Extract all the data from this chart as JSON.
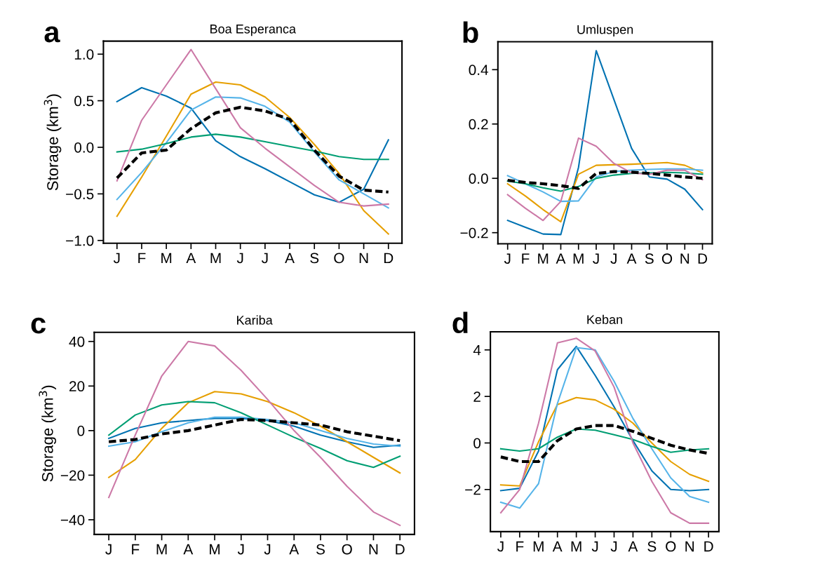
{
  "chart_data": [
    {
      "type": "line",
      "title": "Boa Esperanca",
      "ylabel": "Storage (km$^{3}$)",
      "annotations": [
        "a"
      ],
      "grid": false,
      "legend": false,
      "categories": [
        "J",
        "F",
        "M",
        "A",
        "M",
        "J",
        "J",
        "A",
        "S",
        "O",
        "N",
        "D"
      ],
      "ylim": [
        -1.03,
        1.14
      ],
      "yticks": [
        {
          "value": -1.0,
          "label": "−1.0"
        },
        {
          "value": -0.5,
          "label": "−0.5"
        },
        {
          "value": 0.0,
          "label": "0.0"
        },
        {
          "value": 0.5,
          "label": "0.5"
        },
        {
          "value": 1.0,
          "label": "1.0"
        }
      ],
      "series": [
        {
          "color": "#0072b2",
          "values": [
            0.49,
            0.64,
            0.55,
            0.42,
            0.07,
            -0.1,
            -0.23,
            -0.37,
            -0.51,
            -0.59,
            -0.45,
            0.08
          ]
        },
        {
          "color": "#e69f00",
          "values": [
            -0.74,
            -0.32,
            0.12,
            0.57,
            0.7,
            0.67,
            0.54,
            0.32,
            0.03,
            -0.28,
            -0.68,
            -0.93
          ]
        },
        {
          "color": "#56b4e9",
          "values": [
            -0.56,
            -0.27,
            0.05,
            0.4,
            0.54,
            0.53,
            0.44,
            0.27,
            -0.05,
            -0.35,
            -0.5,
            -0.65
          ]
        },
        {
          "color": "#009e73",
          "values": [
            -0.05,
            -0.02,
            0.04,
            0.11,
            0.14,
            0.11,
            0.06,
            0.01,
            -0.04,
            -0.1,
            -0.13,
            -0.13
          ]
        },
        {
          "color": "#cc79a7",
          "values": [
            -0.36,
            0.29,
            0.67,
            1.05,
            0.63,
            0.21,
            -0.01,
            -0.21,
            -0.41,
            -0.59,
            -0.63,
            -0.61
          ]
        },
        {
          "color": "#000000",
          "line_style": "dashed",
          "values": [
            -0.33,
            -0.06,
            -0.03,
            0.2,
            0.37,
            0.43,
            0.39,
            0.3,
            -0.03,
            -0.31,
            -0.46,
            -0.48
          ]
        }
      ]
    },
    {
      "type": "line",
      "title": "Umluspen",
      "annotations": [
        "b"
      ],
      "grid": false,
      "legend": false,
      "categories": [
        "J",
        "F",
        "M",
        "A",
        "M",
        "J",
        "J",
        "A",
        "S",
        "O",
        "N",
        "D"
      ],
      "ylim": [
        -0.241,
        0.503
      ],
      "yticks": [
        {
          "value": -0.2,
          "label": "−0.2"
        },
        {
          "value": 0.0,
          "label": "0.0"
        },
        {
          "value": 0.2,
          "label": "0.2"
        },
        {
          "value": 0.4,
          "label": "0.4"
        }
      ],
      "series": [
        {
          "color": "#0072b2",
          "values": [
            -0.155,
            -0.18,
            -0.205,
            -0.207,
            0.04,
            0.47,
            0.29,
            0.11,
            0.005,
            -0.003,
            -0.04,
            -0.115
          ]
        },
        {
          "color": "#e69f00",
          "values": [
            -0.02,
            -0.065,
            -0.115,
            -0.16,
            0.015,
            0.048,
            0.05,
            0.052,
            0.055,
            0.058,
            0.048,
            0.02
          ]
        },
        {
          "color": "#56b4e9",
          "values": [
            0.01,
            -0.02,
            -0.05,
            -0.085,
            -0.083,
            0.005,
            0.025,
            0.03,
            0.033,
            0.035,
            0.035,
            0.03
          ]
        },
        {
          "color": "#009e73",
          "values": [
            -0.01,
            -0.02,
            -0.035,
            -0.047,
            -0.03,
            0.0,
            0.012,
            0.018,
            0.02,
            0.022,
            0.02,
            0.015
          ]
        },
        {
          "color": "#cc79a7",
          "values": [
            -0.06,
            -0.11,
            -0.155,
            -0.085,
            0.148,
            0.118,
            0.055,
            0.02,
            0.015,
            0.03,
            0.03,
            -0.005
          ]
        },
        {
          "color": "#000000",
          "line_style": "dashed",
          "values": [
            -0.007,
            -0.015,
            -0.02,
            -0.027,
            -0.037,
            0.018,
            0.025,
            0.023,
            0.018,
            0.012,
            0.005,
            0.0
          ]
        }
      ]
    },
    {
      "type": "line",
      "title": "Kariba",
      "ylabel": "Storage (km$^{3}$)",
      "annotations": [
        "c"
      ],
      "grid": false,
      "legend": false,
      "categories": [
        "J",
        "F",
        "M",
        "A",
        "M",
        "J",
        "J",
        "A",
        "S",
        "O",
        "N",
        "D"
      ],
      "ylim": [
        -46.6,
        44.1
      ],
      "yticks": [
        {
          "value": -40,
          "label": "−40"
        },
        {
          "value": -20,
          "label": "−20"
        },
        0,
        20,
        40
      ],
      "series": [
        {
          "color": "#0072b2",
          "values": [
            -3.5,
            1,
            3.5,
            4.5,
            5.5,
            5.5,
            4.5,
            2,
            -2,
            -5,
            -7.5,
            -6.5
          ]
        },
        {
          "color": "#e69f00",
          "values": [
            -21,
            -13,
            1,
            12.5,
            17.5,
            16.5,
            13,
            8,
            2,
            -5,
            -12,
            -19
          ]
        },
        {
          "color": "#56b4e9",
          "values": [
            -7,
            -5,
            -0.5,
            3.5,
            6,
            6,
            5,
            3.5,
            0,
            -3.5,
            -6,
            -7
          ]
        },
        {
          "color": "#009e73",
          "values": [
            -2,
            7,
            11.5,
            13,
            12.5,
            8,
            2.5,
            -3,
            -8,
            -13.5,
            -16.5,
            -11.5
          ]
        },
        {
          "color": "#cc79a7",
          "values": [
            -30,
            -2,
            24.5,
            40,
            38,
            27,
            14,
            0,
            -12,
            -25,
            -36.5,
            -42.5
          ]
        },
        {
          "color": "#000000",
          "line_style": "dashed",
          "values": [
            -5,
            -4,
            -1.5,
            0,
            2.5,
            5,
            4.5,
            3.5,
            2.5,
            -0.5,
            -2.5,
            -4.5
          ]
        }
      ]
    },
    {
      "type": "line",
      "title": "Keban",
      "annotations": [
        "d"
      ],
      "grid": false,
      "legend": false,
      "categories": [
        "J",
        "F",
        "M",
        "A",
        "M",
        "J",
        "J",
        "A",
        "S",
        "O",
        "N",
        "D"
      ],
      "ylim": [
        -3.81,
        4.78
      ],
      "yticks": [
        {
          "value": -2,
          "label": "−2"
        },
        0,
        2,
        4
      ],
      "series": [
        {
          "color": "#0072b2",
          "values": [
            -2.05,
            -1.95,
            -0.35,
            3.15,
            4.15,
            2.9,
            1.55,
            0.1,
            -1.2,
            -2.0,
            -2.05,
            -2.0
          ]
        },
        {
          "color": "#e69f00",
          "values": [
            -1.8,
            -1.85,
            0.05,
            1.65,
            1.95,
            1.85,
            1.45,
            0.85,
            0.0,
            -0.8,
            -1.35,
            -1.65
          ]
        },
        {
          "color": "#56b4e9",
          "values": [
            -2.55,
            -2.8,
            -1.75,
            1.7,
            4.1,
            4.0,
            2.65,
            1.05,
            -0.25,
            -1.5,
            -2.3,
            -2.55
          ]
        },
        {
          "color": "#009e73",
          "values": [
            -0.25,
            -0.35,
            -0.25,
            0.25,
            0.6,
            0.55,
            0.35,
            0.15,
            -0.15,
            -0.4,
            -0.3,
            -0.25
          ]
        },
        {
          "color": "#cc79a7",
          "values": [
            -3.0,
            -2.0,
            0.85,
            4.3,
            4.5,
            3.95,
            2.4,
            0.0,
            -1.65,
            -3.0,
            -3.45,
            -3.45
          ]
        },
        {
          "color": "#000000",
          "line_style": "dashed",
          "values": [
            -0.6,
            -0.8,
            -0.8,
            0.1,
            0.6,
            0.75,
            0.75,
            0.5,
            0.2,
            -0.1,
            -0.3,
            -0.45
          ]
        }
      ]
    }
  ]
}
